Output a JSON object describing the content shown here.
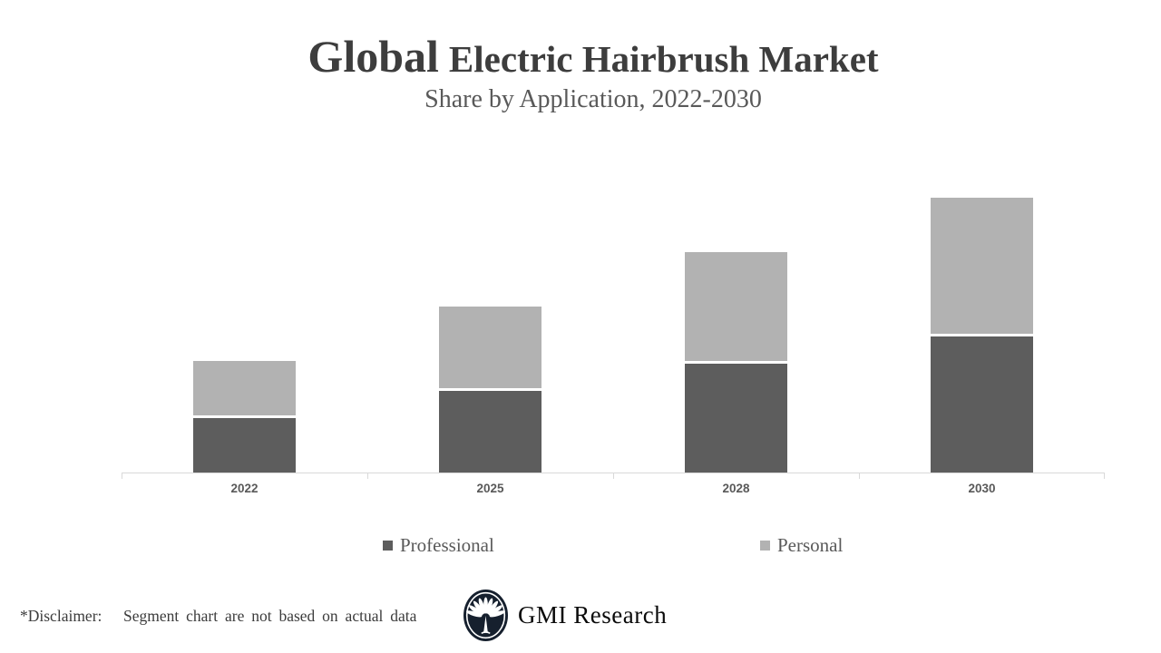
{
  "header": {
    "title_primary": "Global",
    "title_secondary": "Electric Hairbrush Market",
    "subtitle": "Share by Application, 2022-2030"
  },
  "chart_data": {
    "type": "bar",
    "stacked": true,
    "title": "Global Electric Hairbrush Market",
    "subtitle": "Share by Application, 2022-2030",
    "categories": [
      "2022",
      "2025",
      "2028",
      "2030"
    ],
    "series": [
      {
        "name": "Professional",
        "color": "#5d5d5d",
        "values": [
          1.0,
          1.5,
          2.0,
          2.5
        ]
      },
      {
        "name": "Personal",
        "color": "#b2b2b2",
        "values": [
          1.0,
          1.5,
          2.0,
          2.5
        ]
      }
    ],
    "value_axis": {
      "visible": false,
      "min": 0,
      "max": 5.5
    },
    "gridlines": false,
    "legend_position": "bottom",
    "bar_order_bottom_to_top": [
      "Professional",
      "Personal"
    ],
    "axis_color": "#d9d9d9",
    "category_label_color": "#595959"
  },
  "footer": {
    "disclaimer": "*Disclaimer:   Segment chart are not based on actual data",
    "brand": "GMI Research",
    "logo_color": "#16202e"
  }
}
